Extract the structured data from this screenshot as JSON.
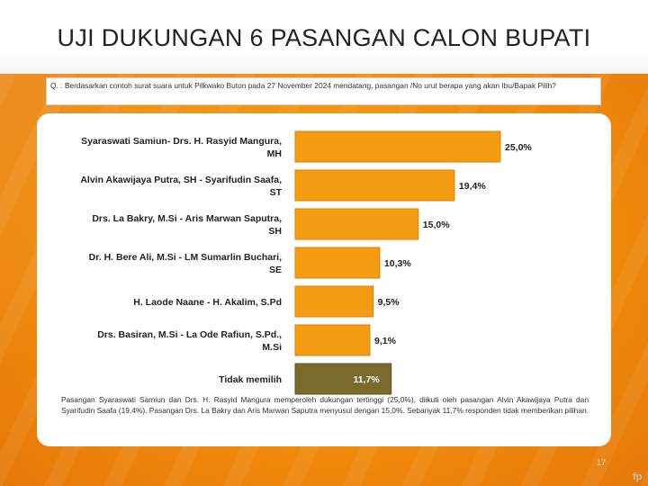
{
  "slide": {
    "title": "UJI DUKUNGAN 6 PASANGAN CALON BUPATI",
    "question": "Q. : Berdasarkan contoh surat suara untuk Pilkwako Buton pada 27 November 2024 mendatang, pasangan /No urut berapa yang akan Ibu/Bapak Pilih?",
    "note": "Pasangan Syaraswati Samiun dan Drs. H. Rasyid Mangura memperoleh dukungan tertinggi (25,0%), diikuti oleh pasangan Alvin Akawijaya Putra dan Syarifudin Saafa (19,4%). Pasangan Drs. La Bakry dan Aris Marwan Saputra menyusul dengan 15,0%. Sebanyak 11,7% responden tidak memberikan pilihan.",
    "page_number": "17",
    "logo_text": "fp"
  },
  "colors": {
    "bar_orange": "#f39c12",
    "bar_orange_edge": "#e07f00",
    "bar_olive": "#7a6b2c",
    "background_orange": "#f08a0b"
  },
  "chart_data": {
    "type": "bar",
    "orientation": "horizontal",
    "categories": [
      [
        "Syaraswati Samiun- Drs. H. Rasyid Mangura,",
        "MH"
      ],
      [
        "Alvin Akawijaya Putra, SH - Syarifudin Saafa,",
        "ST"
      ],
      [
        "Drs. La Bakry, M.Si - Aris Marwan Saputra,",
        "SH"
      ],
      [
        "Dr. H. Bere Ali, M.Si - LM Sumarlin Buchari,",
        "SE"
      ],
      [
        "H. Laode Naane - H. Akalim, S.Pd"
      ],
      [
        "Drs. Basiran, M.Si - La Ode Rafiun, S.Pd.,",
        "M.Si"
      ],
      [
        "Tidak memilih"
      ]
    ],
    "values": [
      25.0,
      19.4,
      15.0,
      10.3,
      9.5,
      9.1,
      11.7
    ],
    "labels": [
      "25,0%",
      "19,4%",
      "15,0%",
      "10,3%",
      "9,5%",
      "9,1%",
      "11,7%"
    ],
    "highlight_index": 6,
    "xlim": [
      0,
      25.0
    ]
  }
}
